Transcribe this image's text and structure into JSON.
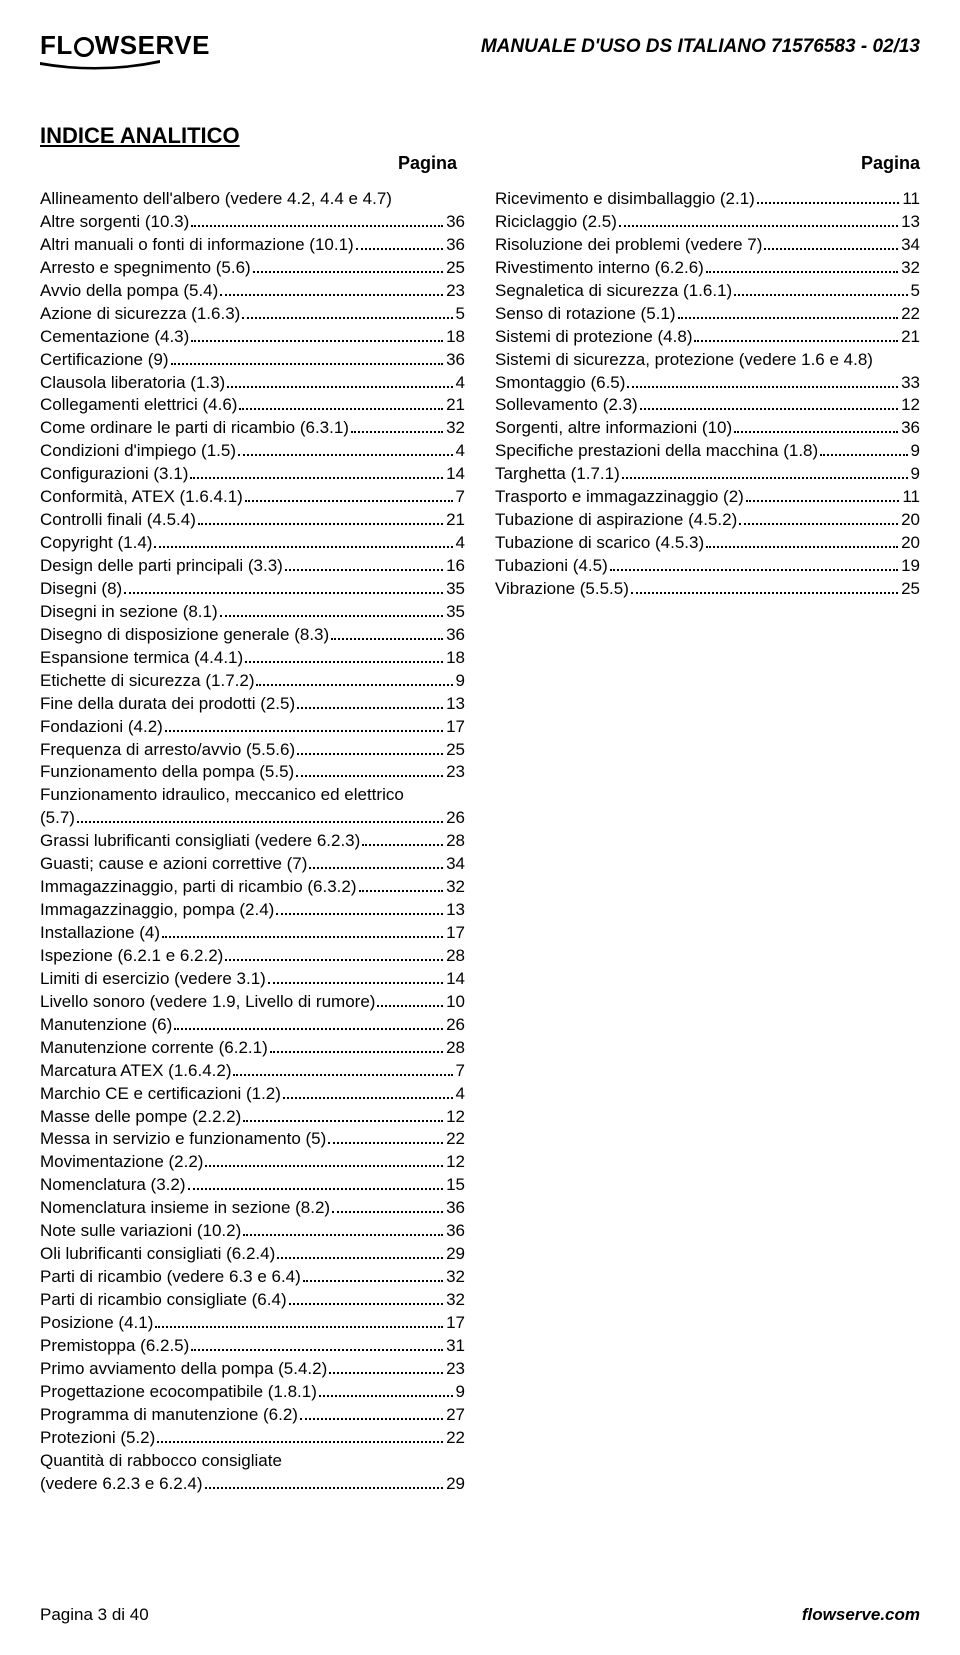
{
  "header": {
    "logo_text_pre": "FL",
    "logo_text_post": "WSERVE",
    "doc_title": "MANUALE D'USO DS  ITALIANO  71576583 - 02/13"
  },
  "title": "INDICE ANALITICO",
  "col_header": "Pagina",
  "left": [
    {
      "text": "Allineamento dell'albero (vedere 4.2, 4.4 e 4.7)",
      "page": "",
      "noleader": true
    },
    {
      "text": "Altre sorgenti (10.3)",
      "page": "36"
    },
    {
      "text": "Altri manuali o fonti di informazione (10.1)",
      "page": "36"
    },
    {
      "text": "Arresto e spegnimento (5.6)",
      "page": "25"
    },
    {
      "text": "Avvio della pompa (5.4)",
      "page": "23"
    },
    {
      "text": "Azione di sicurezza (1.6.3)",
      "page": "5"
    },
    {
      "text": "Cementazione (4.3)",
      "page": "18"
    },
    {
      "text": "Certificazione (9)",
      "page": "36"
    },
    {
      "text": "Clausola liberatoria (1.3)",
      "page": "4"
    },
    {
      "text": "Collegamenti elettrici (4.6)",
      "page": "21"
    },
    {
      "text": "Come ordinare le parti di ricambio (6.3.1)",
      "page": "32"
    },
    {
      "text": "Condizioni d'impiego (1.5)",
      "page": "4"
    },
    {
      "text": "Configurazioni (3.1)",
      "page": "14"
    },
    {
      "text": "Conformità, ATEX (1.6.4.1)",
      "page": "7"
    },
    {
      "text": "Controlli finali (4.5.4)",
      "page": "21"
    },
    {
      "text": "Copyright (1.4)",
      "page": "4"
    },
    {
      "text": "Design delle parti principali (3.3)",
      "page": "16"
    },
    {
      "text": "Disegni (8)",
      "page": "35"
    },
    {
      "text": "Disegni in sezione (8.1)",
      "page": "35"
    },
    {
      "text": "Disegno di disposizione generale (8.3)",
      "page": "36"
    },
    {
      "text": "Espansione termica (4.4.1)",
      "page": "18"
    },
    {
      "text": "Etichette di sicurezza (1.7.2)",
      "page": "9"
    },
    {
      "text": "Fine della durata dei prodotti (2.5)",
      "page": "13"
    },
    {
      "text": "Fondazioni (4.2)",
      "page": "17"
    },
    {
      "text": "Frequenza di arresto/avvio (5.5.6)",
      "page": "25"
    },
    {
      "text": "Funzionamento della pompa (5.5)",
      "page": "23"
    },
    {
      "text": "Funzionamento idraulico, meccanico ed elettrico (5.7)",
      "page": "26",
      "wrap": true
    },
    {
      "text": "Grassi lubrificanti consigliati (vedere 6.2.3)",
      "page": "28"
    },
    {
      "text": "Guasti; cause e azioni correttive (7)",
      "page": "34"
    },
    {
      "text": "Immagazzinaggio, parti di ricambio (6.3.2)",
      "page": "32"
    },
    {
      "text": "Immagazzinaggio, pompa (2.4)",
      "page": "13"
    },
    {
      "text": "Installazione (4)",
      "page": "17"
    },
    {
      "text": "Ispezione (6.2.1 e 6.2.2)",
      "page": "28"
    },
    {
      "text": "Limiti di esercizio (vedere 3.1)",
      "page": "14"
    },
    {
      "text": "Livello sonoro (vedere 1.9, Livello di rumore)",
      "page": "10"
    },
    {
      "text": "Manutenzione (6)",
      "page": "26"
    },
    {
      "text": "Manutenzione corrente (6.2.1)",
      "page": "28"
    },
    {
      "text": "Marcatura ATEX (1.6.4.2)",
      "page": "7"
    },
    {
      "text": "Marchio CE e certificazioni (1.2)",
      "page": "4"
    },
    {
      "text": "Masse delle pompe (2.2.2)",
      "page": "12"
    },
    {
      "text": "Messa in servizio e funzionamento (5)",
      "page": "22"
    },
    {
      "text": "Movimentazione (2.2)",
      "page": "12"
    },
    {
      "text": "Nomenclatura (3.2)",
      "page": "15"
    },
    {
      "text": "Nomenclatura insieme in sezione (8.2)",
      "page": "36"
    },
    {
      "text": "Note sulle variazioni (10.2)",
      "page": "36"
    },
    {
      "text": "Oli lubrificanti consigliati (6.2.4)",
      "page": "29"
    },
    {
      "text": "Parti di ricambio (vedere 6.3 e 6.4)",
      "page": "32"
    },
    {
      "text": "Parti di ricambio consigliate (6.4)",
      "page": "32"
    },
    {
      "text": "Posizione (4.1)",
      "page": "17"
    },
    {
      "text": "Premistoppa (6.2.5)",
      "page": "31"
    },
    {
      "text": "Primo avviamento della pompa (5.4.2)",
      "page": "23"
    },
    {
      "text": "Progettazione ecocompatibile (1.8.1)",
      "page": "9"
    },
    {
      "text": "Programma di manutenzione (6.2)",
      "page": "27"
    },
    {
      "text": "Protezioni (5.2)",
      "page": "22"
    },
    {
      "text": "Quantità di rabbocco consigliate (vedere 6.2.3 e 6.2.4)",
      "page": "29",
      "wrap": true
    }
  ],
  "right": [
    {
      "text": "Ricevimento e disimballaggio (2.1)",
      "page": "11"
    },
    {
      "text": "Riciclaggio (2.5)",
      "page": "13"
    },
    {
      "text": "Risoluzione dei problemi (vedere 7)",
      "page": "34"
    },
    {
      "text": "Rivestimento interno (6.2.6)",
      "page": "32"
    },
    {
      "text": "Segnaletica di sicurezza (1.6.1)",
      "page": "5"
    },
    {
      "text": "Senso di rotazione (5.1)",
      "page": "22"
    },
    {
      "text": "Sistemi di protezione (4.8)",
      "page": "21"
    },
    {
      "text": "Sistemi di sicurezza, protezione (vedere 1.6 e 4.8)",
      "page": "",
      "noleader": true
    },
    {
      "text": "Smontaggio (6.5)",
      "page": "33"
    },
    {
      "text": "Sollevamento (2.3)",
      "page": "12"
    },
    {
      "text": "Sorgenti, altre informazioni (10)",
      "page": "36"
    },
    {
      "text": "Specifiche prestazioni della macchina (1.8)",
      "page": "9"
    },
    {
      "text": "Targhetta (1.7.1)",
      "page": "9"
    },
    {
      "text": "Trasporto e immagazzinaggio (2)",
      "page": "11"
    },
    {
      "text": "Tubazione di aspirazione (4.5.2)",
      "page": "20"
    },
    {
      "text": "Tubazione di scarico (4.5.3)",
      "page": "20"
    },
    {
      "text": "Tubazioni (4.5)",
      "page": "19"
    },
    {
      "text": "Vibrazione (5.5.5)",
      "page": "25"
    }
  ],
  "footer": {
    "left": "Pagina 3 di 40",
    "right": "flowserve.com"
  }
}
